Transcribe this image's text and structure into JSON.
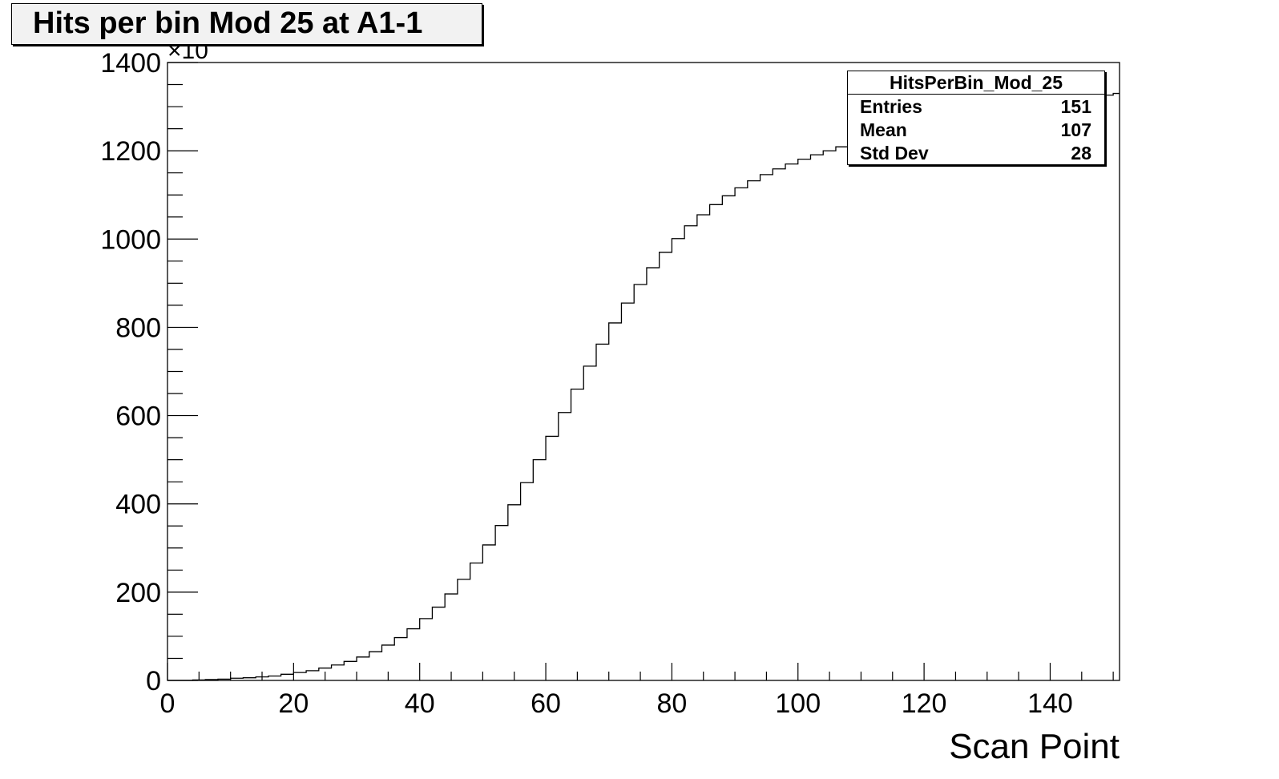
{
  "title": "Hits per bin Mod 25 at A1-1",
  "stats": {
    "name": "HitsPerBin_Mod_25",
    "rows": [
      {
        "label": "Entries",
        "value": "151"
      },
      {
        "label": "Mean",
        "value": "107"
      },
      {
        "label": "Std Dev",
        "value": "28"
      }
    ]
  },
  "chart_data": {
    "type": "line",
    "style": "step histogram",
    "title": "Hits per bin Mod 25 at A1-1",
    "xlabel": "Scan Point",
    "ylabel": "",
    "y_exponent_label": "×10",
    "xlim": [
      0,
      151
    ],
    "ylim": [
      0,
      1400
    ],
    "x_ticks": [
      0,
      20,
      40,
      60,
      80,
      100,
      120,
      140
    ],
    "y_ticks": [
      0,
      200,
      400,
      600,
      800,
      1000,
      1200,
      1400
    ],
    "grid": false,
    "line_color": "#000000",
    "series": [
      {
        "x": [
          0,
          2,
          4,
          6,
          8,
          10,
          12,
          14,
          16,
          18,
          20,
          22,
          24,
          26,
          28,
          30,
          32,
          34,
          36,
          38,
          40,
          42,
          44,
          46,
          48,
          50,
          52,
          54,
          56,
          58,
          60,
          62,
          64,
          66,
          68,
          70,
          72,
          74,
          76,
          78,
          80,
          82,
          84,
          86,
          88,
          90,
          92,
          94,
          96,
          98,
          100,
          102,
          104,
          106,
          108,
          110,
          112,
          114,
          116,
          118,
          120,
          122,
          124,
          126,
          128,
          130,
          132,
          134,
          136,
          138,
          140,
          142,
          144,
          146,
          148,
          150
        ],
        "values": [
          0,
          0,
          1,
          2,
          3,
          5,
          6,
          8,
          10,
          14,
          18,
          22,
          28,
          35,
          43,
          53,
          65,
          80,
          97,
          117,
          140,
          166,
          196,
          229,
          266,
          307,
          351,
          398,
          448,
          500,
          553,
          607,
          660,
          712,
          762,
          810,
          855,
          897,
          935,
          970,
          1001,
          1030,
          1055,
          1078,
          1098,
          1116,
          1132,
          1146,
          1159,
          1170,
          1181,
          1191,
          1200,
          1209,
          1217,
          1225,
          1233,
          1240,
          1247,
          1254,
          1260,
          1266,
          1272,
          1277,
          1283,
          1288,
          1293,
          1297,
          1302,
          1306,
          1310,
          1314,
          1318,
          1322,
          1326,
          1330
        ]
      }
    ]
  }
}
